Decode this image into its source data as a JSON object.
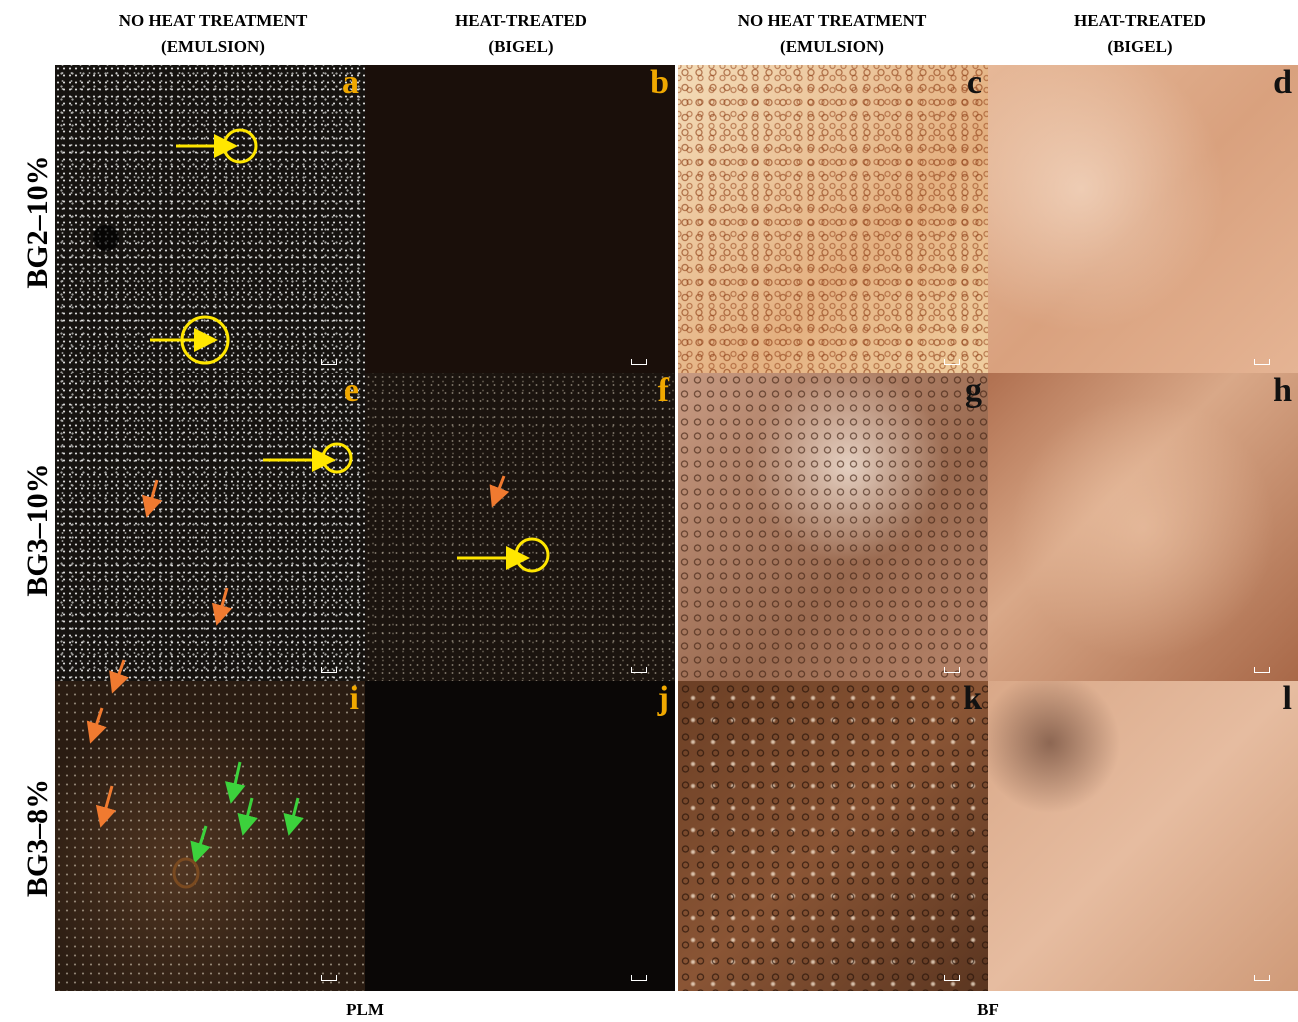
{
  "column_headers": [
    {
      "line1": "NO HEAT TREATMENT",
      "line2": "(EMULSION)"
    },
    {
      "line1": "HEAT-TREATED",
      "line2": "(BIGEL)"
    },
    {
      "line1": "NO HEAT TREATMENT",
      "line2": "(EMULSION)"
    },
    {
      "line1": "HEAT-TREATED",
      "line2": "(BIGEL)"
    }
  ],
  "row_labels": [
    "BG2–10%",
    "BG3–10%",
    "BG3–8%"
  ],
  "panel_letters": [
    [
      "a",
      "b",
      "c",
      "d"
    ],
    [
      "e",
      "f",
      "g",
      "h"
    ],
    [
      "i",
      "j",
      "k",
      "l"
    ]
  ],
  "footer_labels": [
    "PLM",
    "BF"
  ]
}
